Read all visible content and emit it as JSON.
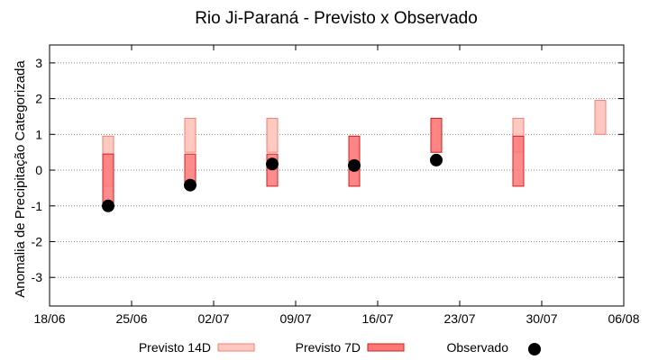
{
  "chart_data": {
    "type": "range-bar-scatter",
    "title": "Rio Ji-Paraná - Previsto x Observado",
    "ylabel": "Anomalia de Precipitação Categorizada",
    "xlabel": "",
    "xlim": [
      "2023-06-18",
      "2023-08-06"
    ],
    "ylim": [
      -3.8,
      3.5
    ],
    "yticks": [
      -3,
      -2,
      -1,
      0,
      1,
      2,
      3
    ],
    "xtick_labels": [
      "18/06",
      "25/06",
      "02/07",
      "09/07",
      "16/07",
      "23/07",
      "30/07",
      "06/08"
    ],
    "xtick_dates": [
      "2023-06-18",
      "2023-06-25",
      "2023-07-02",
      "2023-07-09",
      "2023-07-16",
      "2023-07-23",
      "2023-07-30",
      "2023-08-06"
    ],
    "grid": "horizontal-dotted",
    "legend_position": "bottom",
    "colors": {
      "forecast14": "#ffc8c0",
      "forecast14_edge": "#f08070",
      "forecast7": "#ff7878",
      "forecast7_edge": "#cc2020",
      "observed": "#000000"
    },
    "series": [
      {
        "name": "Previsto 14D",
        "kind": "range",
        "points": [
          {
            "date": "2023-06-23",
            "low": -0.45,
            "high": 0.95
          },
          {
            "date": "2023-06-30",
            "low": 0.5,
            "high": 1.45
          },
          {
            "date": "2023-07-07",
            "low": 0.5,
            "high": 1.45
          },
          {
            "date": "2023-07-14",
            "low": -0.45,
            "high": 0.95
          },
          {
            "date": "2023-07-21",
            "low": 0.5,
            "high": 1.45
          },
          {
            "date": "2023-07-28",
            "low": 0.5,
            "high": 1.45
          },
          {
            "date": "2023-08-04",
            "low": 1.0,
            "high": 1.95
          }
        ]
      },
      {
        "name": "Previsto 7D",
        "kind": "range",
        "points": [
          {
            "date": "2023-06-23",
            "low": -0.95,
            "high": 0.45
          },
          {
            "date": "2023-06-30",
            "low": -0.45,
            "high": 0.45
          },
          {
            "date": "2023-07-07",
            "low": -0.45,
            "high": 0.45
          },
          {
            "date": "2023-07-14",
            "low": -0.45,
            "high": 0.95
          },
          {
            "date": "2023-07-21",
            "low": 0.5,
            "high": 1.45
          },
          {
            "date": "2023-07-28",
            "low": -0.45,
            "high": 0.95
          }
        ]
      },
      {
        "name": "Observado",
        "kind": "point",
        "points": [
          {
            "date": "2023-06-23",
            "value": -1.0
          },
          {
            "date": "2023-06-30",
            "value": -0.42
          },
          {
            "date": "2023-07-07",
            "value": 0.17
          },
          {
            "date": "2023-07-14",
            "value": 0.13
          },
          {
            "date": "2023-07-21",
            "value": 0.28
          }
        ]
      }
    ]
  }
}
